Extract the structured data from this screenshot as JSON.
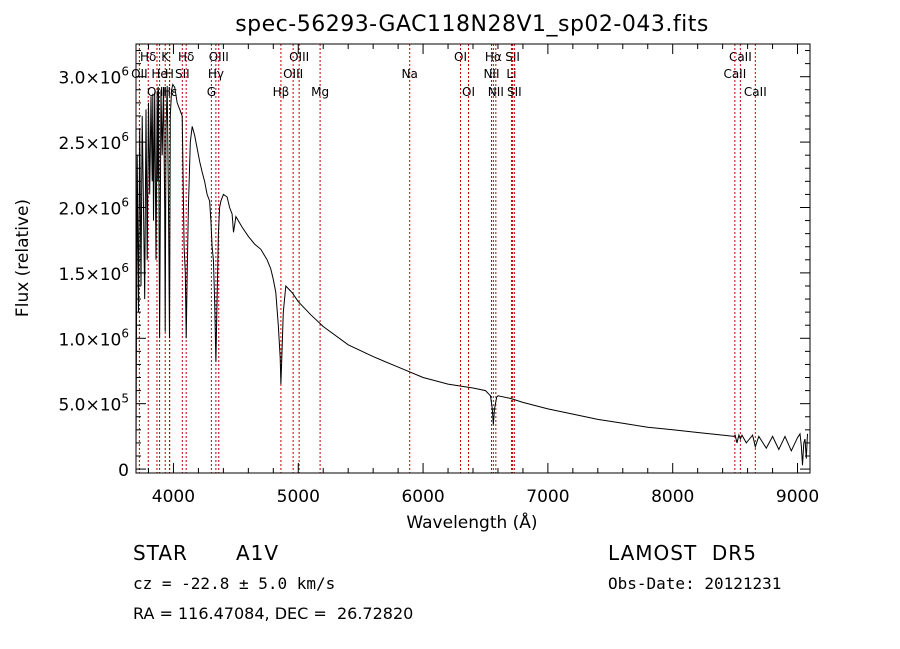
{
  "chart_data": {
    "type": "line",
    "title": "spec-56293-GAC118N28V1_sp02-043.fits",
    "xlabel": "Wavelength (Å)",
    "ylabel": "Flux (relative)",
    "xlim": [
      3700,
      9100
    ],
    "ylim": [
      -30000,
      3250000
    ],
    "x_ticks": [
      4000,
      5000,
      6000,
      7000,
      8000,
      9000
    ],
    "x_tick_labels": [
      "4000",
      "5000",
      "6000",
      "7000",
      "8000",
      "9000"
    ],
    "y_ticks": [
      {
        "value": 0,
        "mantissa": "0",
        "exp": ""
      },
      {
        "value": 500000,
        "mantissa": "5.0×10",
        "exp": "5"
      },
      {
        "value": 1000000,
        "mantissa": "1.0×10",
        "exp": "6"
      },
      {
        "value": 1500000,
        "mantissa": "1.5×10",
        "exp": "6"
      },
      {
        "value": 2000000,
        "mantissa": "2.0×10",
        "exp": "6"
      },
      {
        "value": 2500000,
        "mantissa": "2.5×10",
        "exp": "6"
      },
      {
        "value": 3000000,
        "mantissa": "3.0×10",
        "exp": "6"
      }
    ],
    "grid": false,
    "spectral_lines": [
      {
        "label": "Hδ",
        "wavelength": 3798,
        "row": 0
      },
      {
        "label": "K",
        "wavelength": 3934,
        "row": 0
      },
      {
        "label": "Hδ",
        "wavelength": 4102,
        "row": 0
      },
      {
        "label": "OIII",
        "wavelength": 4363,
        "row": 0
      },
      {
        "label": "OIII",
        "wavelength": 5007,
        "row": 0
      },
      {
        "label": "OI",
        "wavelength": 6300,
        "row": 0
      },
      {
        "label": "Hα",
        "wavelength": 6563,
        "row": 0
      },
      {
        "label": "SII",
        "wavelength": 6717,
        "row": 0
      },
      {
        "label": "CaII",
        "wavelength": 8542,
        "row": 0
      },
      {
        "label": "OII",
        "wavelength": 3727,
        "row": 1
      },
      {
        "label": "He",
        "wavelength": 3889,
        "row": 1
      },
      {
        "label": "H",
        "wavelength": 3968,
        "row": 1
      },
      {
        "label": "SII",
        "wavelength": 4071,
        "row": 1
      },
      {
        "label": "Hγ",
        "wavelength": 4340,
        "row": 1
      },
      {
        "label": "OIII",
        "wavelength": 4959,
        "row": 1
      },
      {
        "label": "NII",
        "wavelength": 6548,
        "row": 1
      },
      {
        "label": "Li",
        "wavelength": 6708,
        "row": 1
      },
      {
        "label": "CaII",
        "wavelength": 8498,
        "row": 1
      },
      {
        "label": "Na",
        "wavelength": 5893,
        "row": 1
      },
      {
        "label": "OIII",
        "wavelength": 3868,
        "row": 2
      },
      {
        "label": "Hε",
        "wavelength": 3970,
        "row": 2
      },
      {
        "label": "G",
        "wavelength": 4304,
        "row": 2
      },
      {
        "label": "Hβ",
        "wavelength": 4861,
        "row": 2
      },
      {
        "label": "Mg",
        "wavelength": 5175,
        "row": 2
      },
      {
        "label": "OI",
        "wavelength": 6364,
        "row": 2
      },
      {
        "label": "NII",
        "wavelength": 6583,
        "row": 2
      },
      {
        "label": "SII",
        "wavelength": 6731,
        "row": 2
      },
      {
        "label": "CaII",
        "wavelength": 8662,
        "row": 2
      }
    ],
    "series": [
      {
        "x": [
          3700,
          3710,
          3720,
          3730,
          3740,
          3750,
          3760,
          3770,
          3780,
          3790,
          3800,
          3810,
          3820,
          3830,
          3835,
          3840,
          3850,
          3860,
          3870,
          3875,
          3880,
          3889,
          3900,
          3910,
          3920,
          3930,
          3934,
          3940,
          3950,
          3960,
          3968,
          3975,
          3985,
          3995,
          4010,
          4030,
          4050,
          4070,
          4085,
          4095,
          4102,
          4110,
          4120,
          4135,
          4150,
          4170,
          4190,
          4210,
          4230,
          4250,
          4270,
          4290,
          4300,
          4310,
          4320,
          4330,
          4340,
          4350,
          4360,
          4370,
          4380,
          4400,
          4430,
          4450,
          4470,
          4481,
          4500,
          4550,
          4600,
          4650,
          4700,
          4750,
          4780,
          4800,
          4820,
          4840,
          4855,
          4861,
          4868,
          4880,
          4900,
          4950,
          5000,
          5100,
          5200,
          5400,
          5600,
          5800,
          6000,
          6200,
          6400,
          6500,
          6540,
          6555,
          6563,
          6572,
          6590,
          6600,
          6700,
          6800,
          7000,
          7200,
          7400,
          7600,
          7800,
          8000,
          8200,
          8400,
          8490,
          8500,
          8515,
          8530,
          8542,
          8555,
          8590,
          8640,
          8662,
          8690,
          8750,
          8800,
          8850,
          8900,
          8950,
          9000,
          9020,
          9030,
          9040,
          9050,
          9060,
          9070,
          9080
        ],
        "y": [
          100000,
          2400000,
          1200000,
          2600000,
          1400000,
          2700000,
          2000000,
          1300000,
          2750000,
          1600000,
          2800000,
          2100000,
          2850000,
          2200000,
          2870000,
          1900000,
          2880000,
          1600000,
          2890000,
          2200000,
          2900000,
          1000000,
          2900000,
          2400000,
          2920000,
          2000000,
          1050000,
          2600000,
          2930000,
          2000000,
          1000000,
          2700000,
          2900000,
          2940000,
          2920000,
          2800000,
          2750000,
          2700000,
          1700000,
          1500000,
          1000000,
          1500000,
          2000000,
          2500000,
          2620000,
          2550000,
          2450000,
          2350000,
          2270000,
          2200000,
          2100000,
          2050000,
          1900000,
          1700000,
          1600000,
          1300000,
          820000,
          1300000,
          1800000,
          2000000,
          2050000,
          2100000,
          2080000,
          2000000,
          1950000,
          1810000,
          1930000,
          1850000,
          1780000,
          1720000,
          1680000,
          1600000,
          1530000,
          1450000,
          1350000,
          1100000,
          850000,
          650000,
          850000,
          1200000,
          1400000,
          1350000,
          1280000,
          1180000,
          1090000,
          950000,
          860000,
          780000,
          700000,
          650000,
          620000,
          600000,
          560000,
          460000,
          340000,
          460000,
          550000,
          560000,
          540000,
          510000,
          460000,
          420000,
          380000,
          350000,
          320000,
          300000,
          280000,
          260000,
          250000,
          260000,
          200000,
          260000,
          230000,
          260000,
          200000,
          260000,
          170000,
          250000,
          160000,
          250000,
          150000,
          250000,
          140000,
          240000,
          270000,
          180000,
          30000,
          200000,
          230000,
          80000,
          270000
        ]
      }
    ]
  },
  "info": {
    "object_class": "STAR",
    "subclass": "A1V",
    "survey": "LAMOST  DR5",
    "redshift": "cz = -22.8 ± 5.0 km/s",
    "obs_date": "Obs-Date: 20121231",
    "coords": "RA = 116.47084, DEC =  26.72820"
  },
  "colors": {
    "line_marker": "#c00000",
    "spectrum": "#000000",
    "frame": "#000000"
  }
}
